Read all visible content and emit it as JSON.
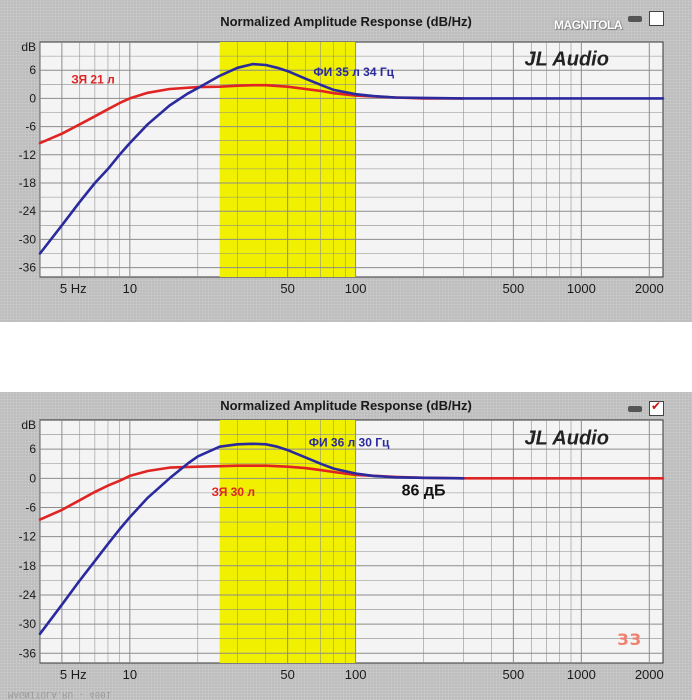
{
  "brand_logo": "MAGNITOLA",
  "colors": {
    "red_series": "#e02424",
    "blue_series": "#2a2a9e",
    "highlight_band": "#f0f000",
    "grid": "#8c8c8c",
    "plot_bg": "#f4f4f4",
    "panel_bg": "#b9b9b9"
  },
  "corner_mark": "ЗЗ",
  "footer_text": "MAGNITOLA.RU - 4001",
  "chart_data": [
    {
      "type": "line",
      "title": "Normalized Amplitude Response (dB/Hz)",
      "ylabel": "dB",
      "xscale": "log",
      "xlim": [
        4,
        2300
      ],
      "ylim": [
        -38,
        12
      ],
      "grid": true,
      "x_ticks": [
        5,
        10,
        50,
        100,
        500,
        1000,
        2000
      ],
      "x_tick_labels": [
        "5 Hz",
        "10",
        "50",
        "100",
        "500",
        "1000",
        "2000"
      ],
      "y_ticks": [
        6,
        0,
        -6,
        -12,
        -18,
        -24,
        -30,
        -36
      ],
      "y_tick_labels": [
        "6",
        "0",
        "-6",
        "-12",
        "-18",
        "-24",
        "-30",
        "-36"
      ],
      "highlight_band": [
        25,
        100
      ],
      "annotations": [
        {
          "text": "JL Audio",
          "x": 560,
          "y": 7,
          "style": "brand"
        },
        {
          "text": "ЗЯ 21 л",
          "x": 5.5,
          "y": 3.2,
          "color": "#e02424"
        },
        {
          "text": "ФИ 35 л 34 Гц",
          "x": 65,
          "y": 4.8,
          "color": "#2a2a9e"
        }
      ],
      "series": [
        {
          "label": "ЗЯ 21 л",
          "color": "#e02424",
          "x": [
            4,
            5,
            6,
            7,
            8,
            9,
            10,
            12,
            15,
            20,
            25,
            30,
            35,
            40,
            50,
            60,
            70,
            80,
            100,
            150,
            200,
            300
          ],
          "y": [
            -9.5,
            -7.5,
            -5.5,
            -3.8,
            -2.3,
            -1.0,
            0,
            1.2,
            2.0,
            2.4,
            2.5,
            2.7,
            2.8,
            2.8,
            2.5,
            2.0,
            1.6,
            1.1,
            0.6,
            0.2,
            0,
            0
          ]
        },
        {
          "label": "ФИ 35 л 34 Гц",
          "color": "#2a2a9e",
          "x": [
            4,
            5,
            6,
            7,
            8,
            9,
            10,
            12,
            15,
            18,
            20,
            25,
            30,
            35,
            40,
            45,
            50,
            60,
            70,
            80,
            100,
            120,
            150,
            200,
            300,
            2300
          ],
          "y": [
            -33,
            -27,
            -22,
            -18,
            -15,
            -12,
            -9.5,
            -5.5,
            -1.5,
            1.0,
            2.2,
            4.8,
            6.5,
            7.3,
            7.1,
            6.5,
            5.8,
            4.2,
            2.9,
            1.8,
            0.9,
            0.5,
            0.2,
            0.1,
            0,
            0
          ]
        }
      ]
    },
    {
      "type": "line",
      "title": "Normalized Amplitude Response (dB/Hz)",
      "ylabel": "dB",
      "xscale": "log",
      "xlim": [
        4,
        2300
      ],
      "ylim": [
        -38,
        12
      ],
      "grid": true,
      "x_ticks": [
        5,
        10,
        50,
        100,
        500,
        1000,
        2000
      ],
      "x_tick_labels": [
        "5 Hz",
        "10",
        "50",
        "100",
        "500",
        "1000",
        "2000"
      ],
      "y_ticks": [
        6,
        0,
        -6,
        -12,
        -18,
        -24,
        -30,
        -36
      ],
      "y_tick_labels": [
        "6",
        "0",
        "-6",
        "-12",
        "-18",
        "-24",
        "-30",
        "-36"
      ],
      "highlight_band": [
        25,
        100
      ],
      "annotations": [
        {
          "text": "JL Audio",
          "x": 560,
          "y": 7,
          "style": "brand"
        },
        {
          "text": "ФИ 36 л 30 Гц",
          "x": 62,
          "y": 6.5,
          "color": "#2a2a9e"
        },
        {
          "text": "ЗЯ 30 л",
          "x": 23,
          "y": -3.6,
          "color": "#e02424"
        },
        {
          "text": "86 дБ",
          "x": 160,
          "y": -3.5,
          "color": "#111111",
          "style": "large"
        }
      ],
      "series": [
        {
          "label": "ЗЯ 30 л",
          "color": "#e02424",
          "x": [
            4,
            5,
            6,
            7,
            8,
            9,
            10,
            12,
            15,
            20,
            25,
            30,
            40,
            50,
            60,
            70,
            80,
            100,
            150,
            200,
            300,
            2300
          ],
          "y": [
            -8.5,
            -6.5,
            -4.5,
            -2.8,
            -1.5,
            -0.5,
            0.5,
            1.5,
            2.2,
            2.4,
            2.5,
            2.6,
            2.6,
            2.4,
            2.1,
            1.7,
            1.3,
            0.7,
            0.3,
            0.1,
            0,
            0
          ]
        },
        {
          "label": "ФИ 36 л 30 Гц",
          "color": "#2a2a9e",
          "x": [
            4,
            5,
            6,
            7,
            8,
            9,
            10,
            12,
            15,
            18,
            20,
            25,
            30,
            35,
            40,
            45,
            50,
            60,
            70,
            80,
            100,
            120,
            150,
            200,
            300
          ],
          "y": [
            -32,
            -26,
            -21,
            -17,
            -13.5,
            -10.5,
            -8,
            -4,
            0,
            3,
            4.5,
            6.5,
            7.0,
            7.1,
            7.0,
            6.5,
            5.8,
            4.3,
            3.0,
            2.0,
            1.0,
            0.5,
            0.2,
            0.1,
            0
          ]
        }
      ]
    }
  ]
}
